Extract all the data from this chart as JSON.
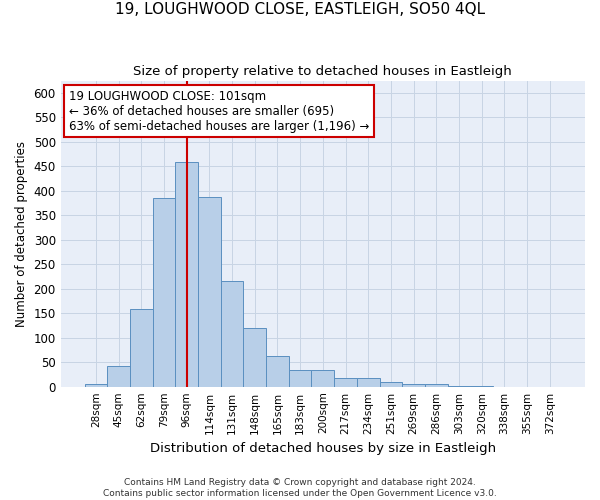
{
  "title": "19, LOUGHWOOD CLOSE, EASTLEIGH, SO50 4QL",
  "subtitle": "Size of property relative to detached houses in Eastleigh",
  "xlabel": "Distribution of detached houses by size in Eastleigh",
  "ylabel": "Number of detached properties",
  "categories": [
    "28sqm",
    "45sqm",
    "62sqm",
    "79sqm",
    "96sqm",
    "114sqm",
    "131sqm",
    "148sqm",
    "165sqm",
    "183sqm",
    "200sqm",
    "217sqm",
    "234sqm",
    "251sqm",
    "269sqm",
    "286sqm",
    "303sqm",
    "320sqm",
    "338sqm",
    "355sqm",
    "372sqm"
  ],
  "values": [
    5,
    42,
    158,
    385,
    458,
    388,
    215,
    120,
    62,
    35,
    35,
    17,
    18,
    10,
    5,
    5,
    2,
    2,
    0,
    0,
    0
  ],
  "bar_color": "#b8cfe8",
  "bar_edge_color": "#5a8fc0",
  "vline_color": "#cc0000",
  "vline_x_index": 4.5,
  "annotation_text": "19 LOUGHWOOD CLOSE: 101sqm\n← 36% of detached houses are smaller (695)\n63% of semi-detached houses are larger (1,196) →",
  "annotation_box_color": "#ffffff",
  "annotation_box_edge_color": "#cc0000",
  "grid_color": "#c8d4e4",
  "background_color": "#e8eef8",
  "footer_text": "Contains HM Land Registry data © Crown copyright and database right 2024.\nContains public sector information licensed under the Open Government Licence v3.0.",
  "ylim": [
    0,
    625
  ],
  "yticks": [
    0,
    50,
    100,
    150,
    200,
    250,
    300,
    350,
    400,
    450,
    500,
    550,
    600
  ]
}
